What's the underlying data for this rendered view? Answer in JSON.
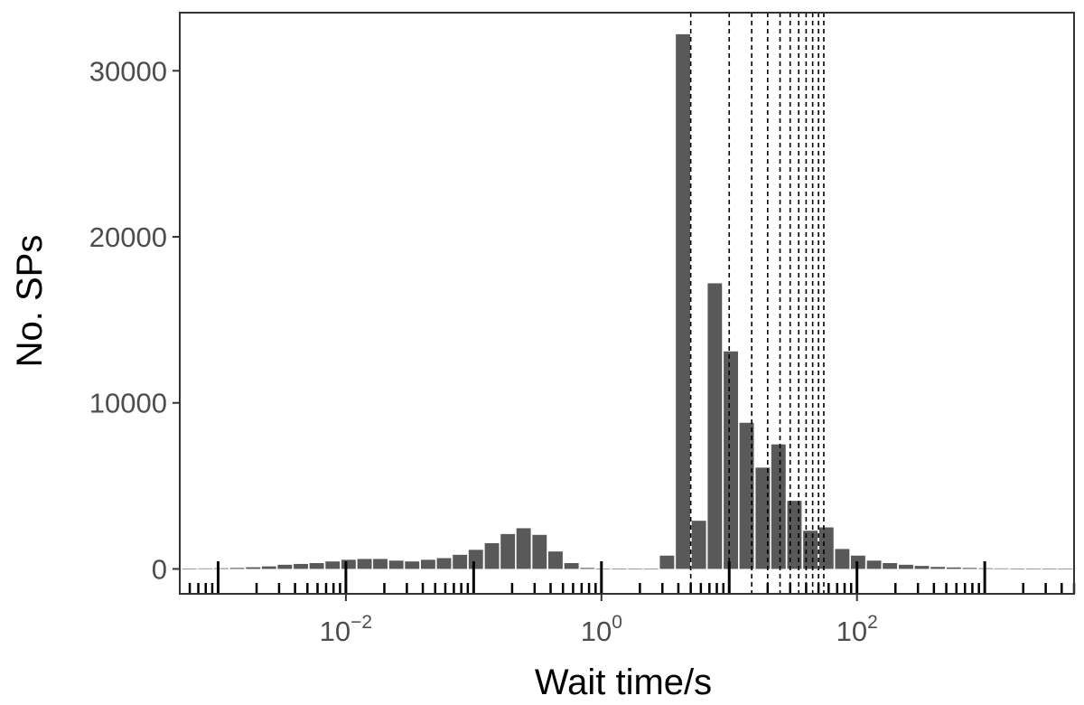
{
  "chart_data": {
    "type": "bar",
    "title": "",
    "xlabel": "Wait time/s",
    "ylabel": "No. SPs",
    "x_scale": "log10",
    "xlim": [
      0.000501,
      5000
    ],
    "ylim": [
      -1500,
      33500
    ],
    "y_ticks": [
      0,
      10000,
      20000,
      30000
    ],
    "x_ticks": [
      {
        "value": 0.01,
        "base": "10",
        "exp": "−2"
      },
      {
        "value": 1,
        "base": "10",
        "exp": "0"
      },
      {
        "value": 100,
        "base": "10",
        "exp": "2"
      }
    ],
    "grid": false,
    "bar_color": "#595959",
    "x": [
      0.000596,
      0.000794,
      0.00106,
      0.00141,
      0.00188,
      0.0025,
      0.00333,
      0.00444,
      0.00591,
      0.00788,
      0.0105,
      0.014,
      0.0186,
      0.0248,
      0.033,
      0.044,
      0.0586,
      0.0781,
      0.104,
      0.139,
      0.185,
      0.246,
      0.328,
      0.437,
      0.583,
      0.776,
      1.03,
      1.38,
      1.84,
      2.45,
      3.26,
      4.35,
      5.79,
      7.72,
      10.3,
      13.7,
      18.3,
      24.3,
      32.4,
      43.2,
      57.6,
      76.7,
      102,
      136,
      181,
      242,
      322,
      429,
      572,
      762,
      1020,
      1350,
      1800,
      2400,
      3200,
      4270
    ],
    "values": [
      10,
      30,
      40,
      60,
      100,
      150,
      250,
      300,
      350,
      450,
      550,
      600,
      600,
      500,
      450,
      550,
      650,
      850,
      1150,
      1550,
      2100,
      2450,
      2050,
      1050,
      350,
      60,
      20,
      10,
      5,
      10,
      800,
      32200,
      2900,
      17200,
      13100,
      8800,
      6100,
      7500,
      4100,
      2300,
      2500,
      1200,
      800,
      500,
      350,
      250,
      180,
      120,
      90,
      60,
      40,
      30,
      20,
      15,
      10,
      8
    ],
    "reference_lines": [
      5,
      10,
      15,
      20,
      25,
      30,
      35,
      40,
      45,
      50,
      55
    ],
    "reference_line_style": "dashed",
    "rug_style": "ticks below bars"
  }
}
